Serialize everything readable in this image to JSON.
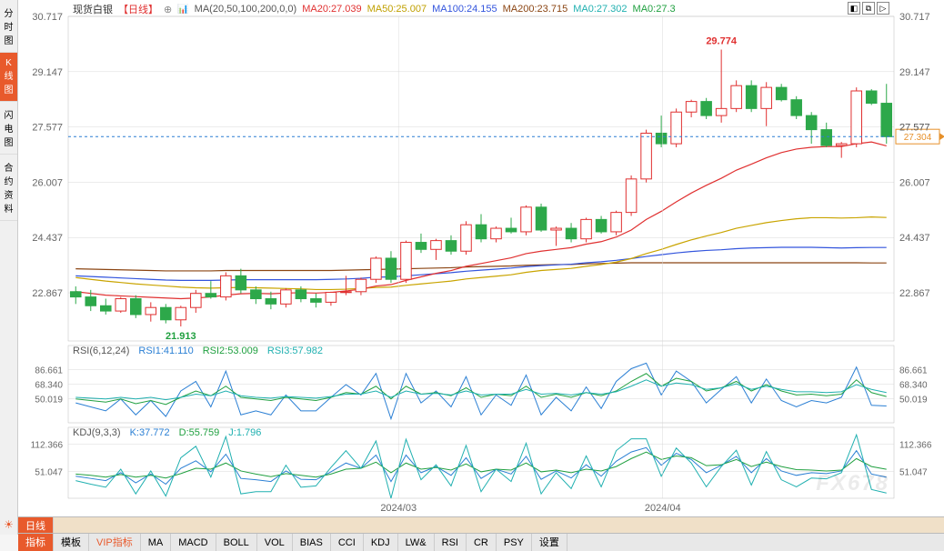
{
  "title": "现货白银",
  "timeframe_tag": "【日线】",
  "ma_label": "MA(20,50,100,200,0,0)",
  "ma_values": [
    {
      "label": "MA20:27.039",
      "color": "#e03030"
    },
    {
      "label": "MA50:25.007",
      "color": "#c0a000"
    },
    {
      "label": "MA100:24.155",
      "color": "#3355dd"
    },
    {
      "label": "MA200:23.715",
      "color": "#8b4513"
    },
    {
      "label": "MA0:27.302",
      "color": "#20b0b0"
    },
    {
      "label": "MA0:27.3",
      "color": "#20a040"
    }
  ],
  "left_tabs": [
    "分时图",
    "K线图",
    "闪电图",
    "合约资料"
  ],
  "left_active_index": 1,
  "top_icons": [
    "◧",
    "⧉",
    "▷"
  ],
  "bottom_tabs_row1": {
    "label": "日线"
  },
  "bottom_tabs_row2": [
    "指标",
    "模板",
    "VIP指标",
    "MA",
    "MACD",
    "BOLL",
    "VOL",
    "BIAS",
    "CCI",
    "KDJ",
    "LW&",
    "RSI",
    "CR",
    "PSY",
    "设置"
  ],
  "bottom_active_index": 0,
  "vip_index": 2,
  "watermark": "FX678",
  "price_chart": {
    "ymin": 21.5,
    "ymax": 30.717,
    "grid_y": [
      30.717,
      29.147,
      27.577,
      26.007,
      24.437,
      22.867
    ],
    "grid_color": "#d8d8d8",
    "hline_dash": {
      "y": 27.304,
      "color": "#2a7fd4",
      "label_box_color": "#e6902a",
      "label": "27.304"
    },
    "high_marker": {
      "value": "29.774",
      "color": "#e03030"
    },
    "low_marker": {
      "value": "21.913",
      "color": "#20a040"
    },
    "x_labels": [
      {
        "x": 0.4,
        "text": "2024/03"
      },
      {
        "x": 0.72,
        "text": "2024/04"
      }
    ],
    "candle_up_fill": "#ffffff",
    "candle_up_stroke": "#e03030",
    "candle_down_fill": "#2da84a",
    "candle_down_stroke": "#2da84a",
    "ma20_color": "#e03030",
    "ma50_color": "#c9a400",
    "ma100_color": "#3355dd",
    "ma200_color": "#8b4513",
    "candles": [
      {
        "o": 22.9,
        "h": 23.05,
        "l": 22.55,
        "c": 22.75
      },
      {
        "o": 22.75,
        "h": 22.95,
        "l": 22.35,
        "c": 22.5
      },
      {
        "o": 22.5,
        "h": 22.7,
        "l": 22.25,
        "c": 22.35
      },
      {
        "o": 22.35,
        "h": 22.75,
        "l": 22.3,
        "c": 22.7
      },
      {
        "o": 22.7,
        "h": 22.8,
        "l": 22.15,
        "c": 22.25
      },
      {
        "o": 22.25,
        "h": 22.6,
        "l": 22.05,
        "c": 22.45
      },
      {
        "o": 22.45,
        "h": 22.55,
        "l": 22.0,
        "c": 22.1
      },
      {
        "o": 22.1,
        "h": 22.5,
        "l": 21.913,
        "c": 22.45
      },
      {
        "o": 22.45,
        "h": 22.95,
        "l": 22.3,
        "c": 22.85
      },
      {
        "o": 22.85,
        "h": 23.2,
        "l": 22.7,
        "c": 22.75
      },
      {
        "o": 22.75,
        "h": 23.45,
        "l": 22.65,
        "c": 23.35
      },
      {
        "o": 23.35,
        "h": 23.55,
        "l": 22.85,
        "c": 22.95
      },
      {
        "o": 22.95,
        "h": 23.05,
        "l": 22.55,
        "c": 22.7
      },
      {
        "o": 22.7,
        "h": 22.9,
        "l": 22.4,
        "c": 22.55
      },
      {
        "o": 22.55,
        "h": 23.0,
        "l": 22.45,
        "c": 22.95
      },
      {
        "o": 22.95,
        "h": 23.05,
        "l": 22.6,
        "c": 22.7
      },
      {
        "o": 22.7,
        "h": 22.85,
        "l": 22.45,
        "c": 22.6
      },
      {
        "o": 22.6,
        "h": 22.9,
        "l": 22.5,
        "c": 22.88
      },
      {
        "o": 22.88,
        "h": 23.35,
        "l": 22.8,
        "c": 22.9
      },
      {
        "o": 22.9,
        "h": 23.3,
        "l": 22.8,
        "c": 23.25
      },
      {
        "o": 23.25,
        "h": 23.9,
        "l": 23.15,
        "c": 23.85
      },
      {
        "o": 23.85,
        "h": 24.05,
        "l": 23.15,
        "c": 23.25
      },
      {
        "o": 23.25,
        "h": 24.35,
        "l": 23.15,
        "c": 24.3
      },
      {
        "o": 24.3,
        "h": 24.55,
        "l": 24.0,
        "c": 24.1
      },
      {
        "o": 24.1,
        "h": 24.4,
        "l": 23.8,
        "c": 24.35
      },
      {
        "o": 24.35,
        "h": 24.5,
        "l": 23.95,
        "c": 24.05
      },
      {
        "o": 24.05,
        "h": 24.9,
        "l": 23.95,
        "c": 24.8
      },
      {
        "o": 24.8,
        "h": 25.1,
        "l": 24.3,
        "c": 24.4
      },
      {
        "o": 24.4,
        "h": 24.75,
        "l": 24.3,
        "c": 24.7
      },
      {
        "o": 24.7,
        "h": 25.0,
        "l": 24.55,
        "c": 24.6
      },
      {
        "o": 24.6,
        "h": 25.35,
        "l": 24.5,
        "c": 25.3
      },
      {
        "o": 25.3,
        "h": 25.4,
        "l": 24.6,
        "c": 24.65
      },
      {
        "o": 24.65,
        "h": 24.75,
        "l": 24.2,
        "c": 24.7
      },
      {
        "o": 24.7,
        "h": 24.85,
        "l": 24.3,
        "c": 24.4
      },
      {
        "o": 24.4,
        "h": 25.0,
        "l": 24.3,
        "c": 24.95
      },
      {
        "o": 24.95,
        "h": 25.05,
        "l": 24.55,
        "c": 24.6
      },
      {
        "o": 24.6,
        "h": 25.2,
        "l": 24.5,
        "c": 25.15
      },
      {
        "o": 25.15,
        "h": 26.2,
        "l": 25.05,
        "c": 26.1
      },
      {
        "o": 26.1,
        "h": 27.5,
        "l": 26.0,
        "c": 27.4
      },
      {
        "o": 27.4,
        "h": 27.9,
        "l": 27.0,
        "c": 27.1
      },
      {
        "o": 27.1,
        "h": 28.1,
        "l": 27.0,
        "c": 28.0
      },
      {
        "o": 28.0,
        "h": 28.35,
        "l": 27.85,
        "c": 28.3
      },
      {
        "o": 28.3,
        "h": 28.4,
        "l": 27.8,
        "c": 27.9
      },
      {
        "o": 27.9,
        "h": 29.774,
        "l": 27.7,
        "c": 28.1
      },
      {
        "o": 28.1,
        "h": 28.9,
        "l": 28.0,
        "c": 28.75
      },
      {
        "o": 28.75,
        "h": 28.9,
        "l": 28.0,
        "c": 28.1
      },
      {
        "o": 28.1,
        "h": 28.85,
        "l": 27.6,
        "c": 28.7
      },
      {
        "o": 28.7,
        "h": 28.8,
        "l": 28.3,
        "c": 28.35
      },
      {
        "o": 28.35,
        "h": 28.45,
        "l": 27.8,
        "c": 27.9
      },
      {
        "o": 27.9,
        "h": 28.0,
        "l": 27.1,
        "c": 27.5
      },
      {
        "o": 27.5,
        "h": 27.7,
        "l": 27.0,
        "c": 27.05
      },
      {
        "o": 27.05,
        "h": 27.15,
        "l": 26.7,
        "c": 27.1
      },
      {
        "o": 27.1,
        "h": 28.7,
        "l": 27.0,
        "c": 28.6
      },
      {
        "o": 28.6,
        "h": 28.65,
        "l": 28.2,
        "c": 28.25
      },
      {
        "o": 28.25,
        "h": 28.8,
        "l": 27.1,
        "c": 27.3
      }
    ],
    "ma20": [
      22.9,
      22.85,
      22.8,
      22.78,
      22.76,
      22.74,
      22.72,
      22.7,
      22.72,
      22.75,
      22.8,
      22.84,
      22.85,
      22.84,
      22.86,
      22.87,
      22.86,
      22.88,
      22.92,
      22.97,
      23.06,
      23.1,
      23.22,
      23.32,
      23.42,
      23.5,
      23.62,
      23.7,
      23.78,
      23.86,
      23.98,
      24.05,
      24.1,
      24.15,
      24.25,
      24.32,
      24.45,
      24.65,
      24.95,
      25.18,
      25.45,
      25.7,
      25.92,
      26.12,
      26.35,
      26.52,
      26.7,
      26.85,
      26.95,
      27.0,
      27.02,
      27.02,
      27.1,
      27.15,
      27.039
    ],
    "ma50": [
      23.3,
      23.25,
      23.2,
      23.16,
      23.12,
      23.09,
      23.06,
      23.03,
      23.01,
      23.0,
      23.01,
      23.02,
      23.01,
      23.0,
      22.99,
      22.98,
      22.96,
      22.96,
      22.97,
      22.99,
      23.02,
      23.03,
      23.08,
      23.12,
      23.16,
      23.2,
      23.26,
      23.3,
      23.34,
      23.38,
      23.45,
      23.5,
      23.53,
      23.56,
      23.62,
      23.67,
      23.74,
      23.84,
      23.98,
      24.1,
      24.24,
      24.37,
      24.48,
      24.58,
      24.7,
      24.78,
      24.86,
      24.92,
      24.97,
      25.0,
      25.0,
      24.99,
      25.0,
      25.02,
      25.007
    ],
    "ma100": [
      23.35,
      23.33,
      23.31,
      23.29,
      23.27,
      23.25,
      23.23,
      23.22,
      23.22,
      23.22,
      23.23,
      23.24,
      23.24,
      23.24,
      23.24,
      23.24,
      23.24,
      23.25,
      23.26,
      23.28,
      23.31,
      23.32,
      23.35,
      23.38,
      23.41,
      23.44,
      23.48,
      23.51,
      23.54,
      23.57,
      23.61,
      23.64,
      23.66,
      23.68,
      23.72,
      23.75,
      23.79,
      23.84,
      23.9,
      23.95,
      24.0,
      24.04,
      24.07,
      24.09,
      24.12,
      24.14,
      24.15,
      24.16,
      24.16,
      24.16,
      24.15,
      24.14,
      24.15,
      24.155,
      24.155
    ],
    "ma200": [
      23.55,
      23.54,
      23.53,
      23.52,
      23.51,
      23.5,
      23.49,
      23.49,
      23.49,
      23.49,
      23.5,
      23.5,
      23.5,
      23.5,
      23.5,
      23.5,
      23.5,
      23.5,
      23.51,
      23.52,
      23.53,
      23.54,
      23.55,
      23.56,
      23.57,
      23.58,
      23.6,
      23.61,
      23.62,
      23.63,
      23.65,
      23.66,
      23.67,
      23.67,
      23.69,
      23.7,
      23.71,
      23.72,
      23.72,
      23.72,
      23.72,
      23.72,
      23.72,
      23.72,
      23.72,
      23.72,
      23.72,
      23.72,
      23.72,
      23.72,
      23.72,
      23.72,
      23.72,
      23.715,
      23.715
    ]
  },
  "rsi": {
    "label": "RSI(6,12,24)",
    "lines": [
      {
        "label": "RSI1:41.110",
        "color": "#2a7fd4"
      },
      {
        "label": "RSI2:53.009",
        "color": "#20a040"
      },
      {
        "label": "RSI3:57.982",
        "color": "#20b0b0"
      }
    ],
    "ymin": 20,
    "ymax": 100,
    "grid_y": [
      86.661,
      68.34,
      50.019
    ],
    "series": [
      [
        45,
        40,
        35,
        50,
        30,
        48,
        28,
        60,
        72,
        40,
        85,
        30,
        35,
        30,
        55,
        35,
        35,
        52,
        68,
        55,
        82,
        25,
        82,
        45,
        60,
        40,
        78,
        30,
        55,
        42,
        80,
        30,
        52,
        35,
        65,
        38,
        72,
        88,
        95,
        55,
        85,
        72,
        45,
        62,
        78,
        45,
        75,
        48,
        40,
        48,
        45,
        52,
        90,
        42,
        41.11
      ],
      [
        50,
        48,
        46,
        50,
        44,
        48,
        43,
        52,
        60,
        54,
        66,
        52,
        50,
        48,
        52,
        50,
        48,
        52,
        58,
        56,
        66,
        50,
        66,
        56,
        58,
        54,
        64,
        52,
        56,
        54,
        66,
        52,
        56,
        52,
        58,
        54,
        60,
        72,
        82,
        66,
        76,
        72,
        60,
        64,
        72,
        60,
        68,
        60,
        55,
        56,
        54,
        56,
        74,
        58,
        53.009
      ],
      [
        52,
        51,
        50,
        52,
        50,
        52,
        49,
        52,
        56,
        54,
        60,
        54,
        52,
        51,
        53,
        52,
        51,
        53,
        56,
        56,
        60,
        52,
        60,
        56,
        57,
        55,
        60,
        55,
        56,
        56,
        62,
        56,
        57,
        55,
        58,
        56,
        59,
        66,
        74,
        66,
        70,
        68,
        62,
        64,
        69,
        62,
        66,
        62,
        59,
        59,
        58,
        59,
        68,
        62,
        57.982
      ]
    ]
  },
  "kdj": {
    "label": "KDJ(9,3,3)",
    "lines": [
      {
        "label": "K:37.772",
        "color": "#2a7fd4"
      },
      {
        "label": "D:55.759",
        "color": "#20a040"
      },
      {
        "label": "J:1.796",
        "color": "#20b0b0"
      }
    ],
    "ymin": -10,
    "ymax": 120,
    "grid_y": [
      112.366,
      51.047
    ],
    "series": [
      [
        40,
        35,
        30,
        48,
        25,
        45,
        22,
        58,
        75,
        50,
        90,
        35,
        32,
        28,
        52,
        33,
        32,
        50,
        70,
        58,
        88,
        28,
        88,
        48,
        62,
        42,
        82,
        35,
        56,
        45,
        85,
        33,
        52,
        36,
        66,
        40,
        74,
        95,
        105,
        65,
        92,
        78,
        48,
        65,
        85,
        48,
        80,
        52,
        42,
        48,
        46,
        52,
        98,
        45,
        37.772
      ],
      [
        45,
        42,
        38,
        44,
        38,
        42,
        36,
        46,
        58,
        56,
        70,
        52,
        45,
        39,
        46,
        42,
        38,
        45,
        56,
        58,
        72,
        48,
        70,
        56,
        60,
        54,
        68,
        50,
        56,
        54,
        70,
        50,
        54,
        48,
        56,
        52,
        62,
        80,
        95,
        78,
        86,
        82,
        64,
        66,
        78,
        62,
        72,
        62,
        55,
        54,
        52,
        54,
        80,
        62,
        55.759
      ],
      [
        30,
        22,
        15,
        56,
        0,
        52,
        -5,
        82,
        108,
        38,
        130,
        0,
        5,
        5,
        65,
        15,
        18,
        60,
        98,
        58,
        120,
        -12,
        124,
        32,
        66,
        18,
        110,
        5,
        56,
        28,
        115,
        0,
        48,
        12,
        86,
        16,
        98,
        125,
        125,
        40,
        104,
        70,
        16,
        62,
        99,
        20,
        96,
        32,
        16,
        36,
        34,
        48,
        134,
        10,
        1.796
      ]
    ]
  }
}
